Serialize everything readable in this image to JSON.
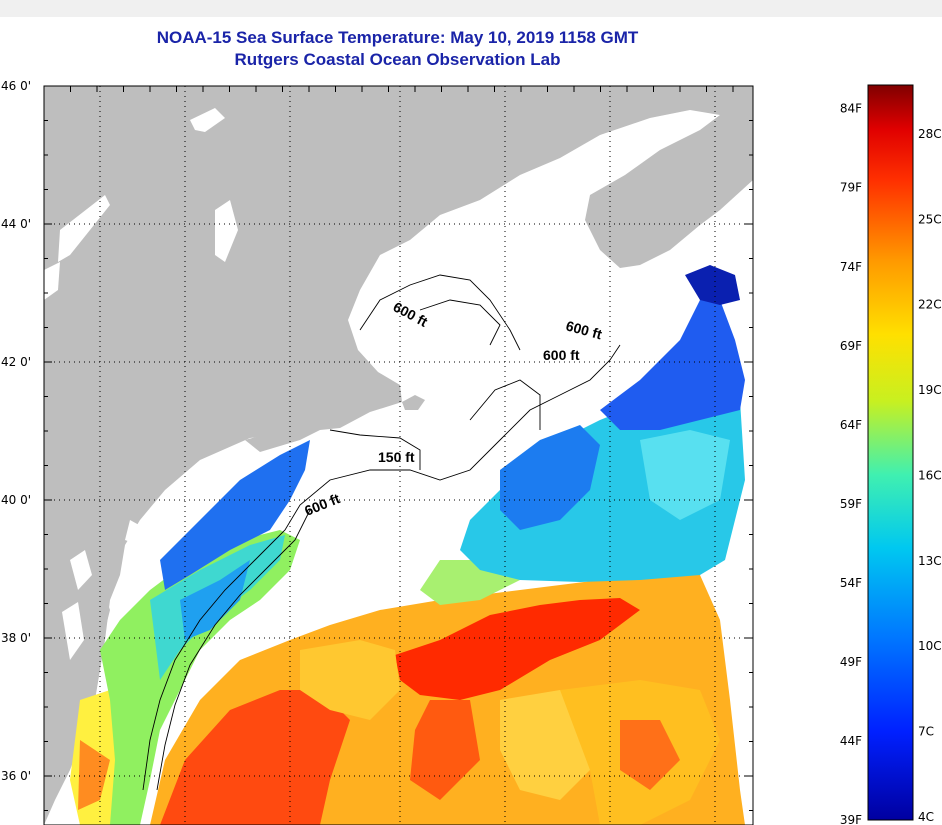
{
  "header": {
    "title": "NOAA-15 Sea Surface Temperature:  May 10, 2019 1158 GMT",
    "subtitle": "Rutgers Coastal Ocean Observation Lab"
  },
  "colors": {
    "land": "#bebebe",
    "cloud": "#ffffff",
    "title": "#1a24a8"
  },
  "map": {
    "latitude_labels": [
      "46 0'",
      "44 0'",
      "42 0'",
      "40 0'",
      "38 0'",
      "36 0'"
    ],
    "latitudes": [
      46,
      44,
      42,
      40,
      38,
      36
    ],
    "lat_range": [
      35.0,
      46.0
    ],
    "contour_labels": [
      {
        "text": "600 ft",
        "depth_ft": 600
      },
      {
        "text": "600 ft",
        "depth_ft": 600
      },
      {
        "text": "600 ft",
        "depth_ft": 600
      },
      {
        "text": "150 ft",
        "depth_ft": 150
      },
      {
        "text": "600 ft",
        "depth_ft": 600
      }
    ]
  },
  "colorbar": {
    "fahrenheit_labels": [
      "84F",
      "79F",
      "74F",
      "69F",
      "64F",
      "59F",
      "54F",
      "49F",
      "44F",
      "39F"
    ],
    "celsius_labels": [
      "28C",
      "25C",
      "22C",
      "19C",
      "16C",
      "13C",
      "10C",
      "7C",
      "4C"
    ],
    "fahrenheit_values": [
      84,
      79,
      74,
      69,
      64,
      59,
      54,
      49,
      44,
      39
    ],
    "celsius_values": [
      28,
      25,
      22,
      19,
      16,
      13,
      10,
      7,
      4
    ]
  }
}
